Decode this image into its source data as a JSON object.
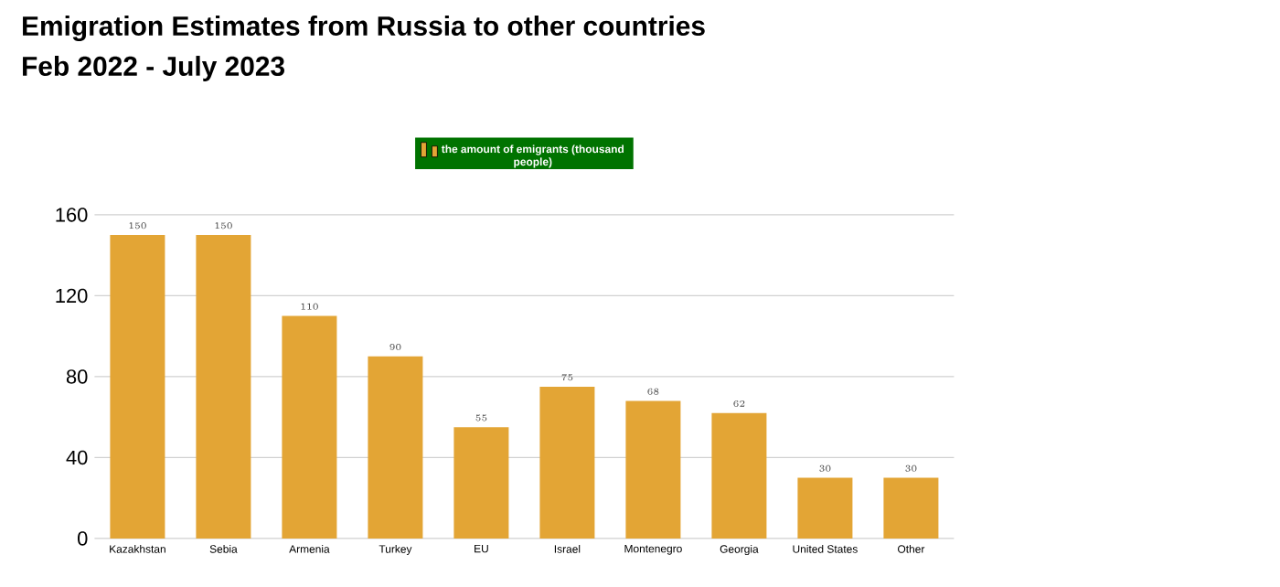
{
  "chart_data": {
    "type": "bar",
    "title": "Emigration Estimates from Russia to other countries",
    "subtitle": "Feb 2022 - July 2023",
    "categories": [
      "Kazakhstan",
      "Sebia",
      "Armenia",
      "Turkey",
      "EU",
      "Israel",
      "Montenegro",
      "Georgia",
      "United States",
      "Other"
    ],
    "series": [
      {
        "name": "the amount of emigrants (thousand people)",
        "color": "#e3a535",
        "values": [
          150,
          150,
          110,
          90,
          55,
          75,
          68,
          62,
          30,
          30
        ]
      }
    ],
    "ylim": [
      0,
      160
    ],
    "yticks": [
      0,
      40,
      80,
      120,
      160
    ],
    "grid": "y",
    "legend": "top",
    "data_labels": true
  }
}
